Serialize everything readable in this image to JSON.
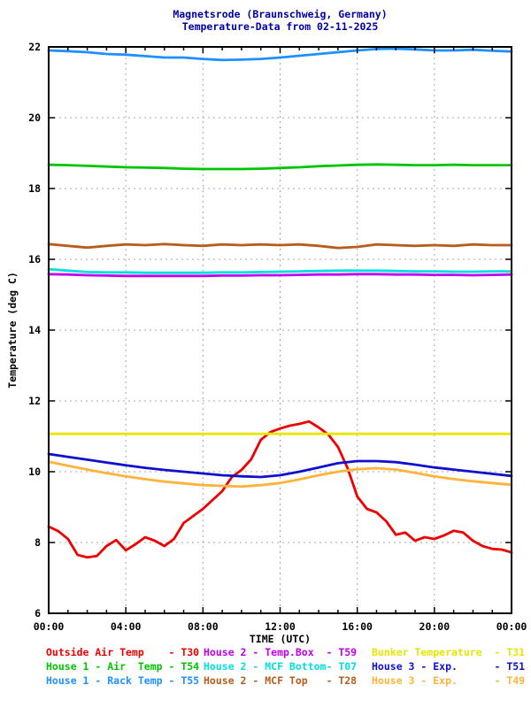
{
  "title": {
    "line1": "Magnetsrode (Braunschweig, Germany)",
    "line2": "Temperature-Data from 02-11-2025"
  },
  "colors": {
    "title": "#0000a8",
    "axis": "#000000",
    "grid": "#a8a8a8",
    "background": "#ffffff"
  },
  "chart_data": {
    "type": "line",
    "title": "Magnetsrode (Braunschweig, Germany)",
    "subtitle": "Temperature-Data from 02-11-2025",
    "xlabel": "TIME (UTC)",
    "ylabel": "Temperature (deg C)",
    "xlim_hours": [
      0,
      24
    ],
    "ylim": [
      6,
      22
    ],
    "x_major_tick_hours": [
      0,
      4,
      8,
      12,
      16,
      20,
      24
    ],
    "x_tick_labels": [
      "00:00",
      "04:00",
      "08:00",
      "12:00",
      "16:00",
      "20:00",
      "00:00"
    ],
    "x_minor_tick_every_hours": 1,
    "y_major_ticks": [
      6,
      8,
      10,
      12,
      14,
      16,
      18,
      20,
      22
    ],
    "y_tick_labels": [
      "6",
      "8",
      "10",
      "12",
      "14",
      "16",
      "18",
      "20",
      "22"
    ],
    "grid": {
      "style": "dashed",
      "on_major_ticks": true
    },
    "legend_position": "below",
    "series": [
      {
        "name": "Outside Air Temp",
        "tag": "T30",
        "legend_text": "Outside Air Temp    - T30",
        "color": "#ee0000",
        "x_start_hours": 0,
        "x_step_hours": 0.5,
        "values": [
          8.45,
          8.32,
          8.1,
          7.65,
          7.58,
          7.62,
          7.9,
          8.07,
          7.78,
          7.95,
          8.15,
          8.05,
          7.9,
          8.1,
          8.55,
          8.75,
          8.95,
          9.2,
          9.45,
          9.85,
          10.05,
          10.35,
          10.9,
          11.12,
          11.22,
          11.3,
          11.35,
          11.42,
          11.25,
          11.05,
          10.7,
          10.1,
          9.3,
          8.95,
          8.85,
          8.6,
          8.22,
          8.28,
          8.05,
          8.15,
          8.1,
          8.2,
          8.33,
          8.28,
          8.05,
          7.9,
          7.82,
          7.8,
          7.72
        ]
      },
      {
        "name": "House 1 - Air Temp",
        "tag": "T54",
        "legend_text": "House 1 - Air  Temp - T54",
        "color": "#00c400",
        "x_start_hours": 0,
        "x_step_hours": 1,
        "values": [
          18.67,
          18.66,
          18.64,
          18.62,
          18.6,
          18.59,
          18.58,
          18.56,
          18.55,
          18.55,
          18.55,
          18.56,
          18.58,
          18.6,
          18.63,
          18.65,
          18.67,
          18.68,
          18.67,
          18.66,
          18.66,
          18.67,
          18.66,
          18.66,
          18.66
        ]
      },
      {
        "name": "House 1 - Rack Temp",
        "tag": "T55",
        "legend_text": "House 1 - Rack Temp - T55",
        "color": "#1e90ff",
        "x_start_hours": 0,
        "x_step_hours": 1,
        "values": [
          21.9,
          21.88,
          21.85,
          21.8,
          21.78,
          21.74,
          21.7,
          21.7,
          21.66,
          21.63,
          21.64,
          21.66,
          21.7,
          21.75,
          21.8,
          21.85,
          21.9,
          21.94,
          21.95,
          21.93,
          21.9,
          21.9,
          21.92,
          21.89,
          21.87
        ]
      },
      {
        "name": "House 2 - Temp.Box",
        "tag": "T59",
        "legend_text": "House 2 - Temp.Box  - T59",
        "color": "#c000f0",
        "x_start_hours": 0,
        "x_step_hours": 1,
        "values": [
          15.58,
          15.57,
          15.55,
          15.54,
          15.53,
          15.53,
          15.53,
          15.53,
          15.53,
          15.54,
          15.54,
          15.55,
          15.55,
          15.56,
          15.57,
          15.57,
          15.58,
          15.58,
          15.57,
          15.57,
          15.56,
          15.56,
          15.55,
          15.56,
          15.57
        ]
      },
      {
        "name": "House 2 - MCF Bottom",
        "tag": "T07",
        "legend_text": "House 2 - MCF Bottom- T07",
        "color": "#00dede",
        "x_start_hours": 0,
        "x_step_hours": 1,
        "values": [
          15.72,
          15.68,
          15.64,
          15.63,
          15.63,
          15.62,
          15.62,
          15.62,
          15.62,
          15.63,
          15.63,
          15.64,
          15.65,
          15.66,
          15.67,
          15.68,
          15.68,
          15.68,
          15.67,
          15.66,
          15.66,
          15.65,
          15.65,
          15.66,
          15.66
        ]
      },
      {
        "name": "House 2 - MCF Top",
        "tag": "T28",
        "legend_text": "House 2 - MCF Top   - T28",
        "color": "#b85c1e",
        "x_start_hours": 0,
        "x_step_hours": 1,
        "values": [
          16.43,
          16.38,
          16.33,
          16.38,
          16.42,
          16.4,
          16.43,
          16.4,
          16.38,
          16.42,
          16.4,
          16.42,
          16.4,
          16.42,
          16.38,
          16.32,
          16.35,
          16.42,
          16.4,
          16.38,
          16.4,
          16.38,
          16.42,
          16.4,
          16.4
        ]
      },
      {
        "name": "Bunker Temperature",
        "tag": "T31",
        "legend_text": "Bunker Temperature  - T31",
        "color": "#e6e600",
        "x_start_hours": 0,
        "x_step_hours": 1,
        "values": [
          11.07,
          11.07,
          11.07,
          11.07,
          11.07,
          11.07,
          11.07,
          11.07,
          11.07,
          11.07,
          11.07,
          11.07,
          11.07,
          11.07,
          11.07,
          11.07,
          11.07,
          11.07,
          11.07,
          11.07,
          11.07,
          11.07,
          11.07,
          11.07,
          11.07
        ]
      },
      {
        "name": "House 3 - Exp.",
        "tag": "T51",
        "legend_text": "House 3 - Exp.      - T51",
        "color": "#0f0fcd",
        "x_start_hours": 0,
        "x_step_hours": 1,
        "values": [
          10.5,
          10.42,
          10.34,
          10.26,
          10.18,
          10.11,
          10.05,
          10.0,
          9.95,
          9.9,
          9.87,
          9.85,
          9.9,
          10.0,
          10.12,
          10.24,
          10.3,
          10.3,
          10.27,
          10.2,
          10.12,
          10.06,
          10.0,
          9.94,
          9.88
        ]
      },
      {
        "name": "House 3 - Exp.",
        "tag": "T49",
        "legend_text": "House 3 - Exp.      - T49",
        "color": "#ffb339",
        "x_start_hours": 0,
        "x_step_hours": 1,
        "values": [
          10.28,
          10.17,
          10.06,
          9.96,
          9.87,
          9.79,
          9.72,
          9.67,
          9.62,
          9.6,
          9.58,
          9.62,
          9.68,
          9.78,
          9.9,
          10.0,
          10.07,
          10.1,
          10.06,
          9.97,
          9.87,
          9.79,
          9.73,
          9.68,
          9.63
        ]
      }
    ]
  }
}
